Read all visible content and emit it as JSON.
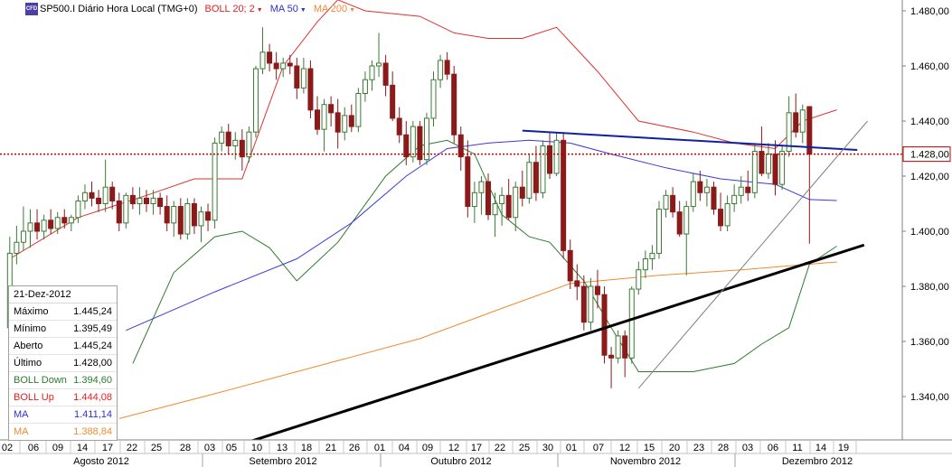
{
  "header": {
    "symbol_icon_text": "CFD",
    "title": "SP500.I Diário Hora Local (TMG+0)",
    "indicators": [
      {
        "label": "BOLL 20; 2",
        "color": "#e02020"
      },
      {
        "label": "MA 50",
        "color": "#3030d0"
      },
      {
        "label": "MA 200",
        "color": "#f08a30"
      }
    ]
  },
  "colors": {
    "up_candle": "#3a7a34",
    "down_candle": "#8b1a1a",
    "boll_upper": "#e03030",
    "boll_lower": "#2e7a2e",
    "ma50": "#3a3ad8",
    "ma200": "#f08a30",
    "current_price_line": "#c00000",
    "support_trendline": "#000000",
    "resistance_trendline": "#1020a0",
    "thin_trendline": "#808080",
    "price_label_border": "#c00000"
  },
  "price_axis": {
    "ticks": [
      "1.480,00",
      "1.460,00",
      "1.440,00",
      "1.420,00",
      "1.400,00",
      "1.380,00",
      "1.360,00",
      "1.340,00"
    ],
    "current_price_label": "1.428,00"
  },
  "time_axis": {
    "days": [
      "02",
      "06",
      "09",
      "14",
      "17",
      "22",
      "25",
      "28",
      "03",
      "05",
      "10",
      "13",
      "18",
      "21",
      "26",
      "01",
      "04",
      "09",
      "12",
      "17",
      "22",
      "25",
      "30",
      "01",
      "07",
      "12",
      "15",
      "20",
      "23",
      "28",
      "03",
      "06",
      "11",
      "14",
      "19"
    ],
    "months": [
      "Agosto 2012",
      "Setembro 2012",
      "Outubro 2012",
      "Novembro 2012",
      "Dezembro 2012"
    ]
  },
  "info_box": {
    "date": "21-Dez-2012",
    "rows": [
      {
        "label": "Máximo",
        "value": "1.445,24",
        "color": "#000000"
      },
      {
        "label": "Mínimo",
        "value": "1.395,49",
        "color": "#000000"
      },
      {
        "label": "Aberto",
        "value": "1.445,24",
        "color": "#000000"
      },
      {
        "label": "Último",
        "value": "1.428,00",
        "color": "#000000"
      },
      {
        "label": "BOLL Down",
        "value": "1.394,60",
        "color": "#2e7a2e"
      },
      {
        "label": "BOLL Up",
        "value": "1.444,08",
        "color": "#e02020"
      },
      {
        "label": "MA",
        "value": "1.411,14",
        "color": "#3030d0"
      },
      {
        "label": "MA",
        "value": "1.388,84",
        "color": "#f08a30"
      }
    ]
  },
  "chart_data": {
    "type": "candlestick",
    "symbol": "SP500.I",
    "y_range": [
      1322,
      1492
    ],
    "current_price": 1428.0,
    "candles": [
      {
        "o": 1365,
        "h": 1398,
        "l": 1355,
        "c": 1392
      },
      {
        "o": 1392,
        "h": 1402,
        "l": 1388,
        "c": 1396
      },
      {
        "o": 1396,
        "h": 1409,
        "l": 1393,
        "c": 1400
      },
      {
        "o": 1400,
        "h": 1408,
        "l": 1394,
        "c": 1403
      },
      {
        "o": 1403,
        "h": 1408,
        "l": 1397,
        "c": 1400
      },
      {
        "o": 1400,
        "h": 1406,
        "l": 1397,
        "c": 1404
      },
      {
        "o": 1404,
        "h": 1408,
        "l": 1399,
        "c": 1401
      },
      {
        "o": 1401,
        "h": 1407,
        "l": 1399,
        "c": 1405
      },
      {
        "o": 1405,
        "h": 1408,
        "l": 1401,
        "c": 1403
      },
      {
        "o": 1403,
        "h": 1406,
        "l": 1400,
        "c": 1405
      },
      {
        "o": 1405,
        "h": 1413,
        "l": 1403,
        "c": 1411
      },
      {
        "o": 1411,
        "h": 1417,
        "l": 1408,
        "c": 1414
      },
      {
        "o": 1414,
        "h": 1418,
        "l": 1409,
        "c": 1412
      },
      {
        "o": 1412,
        "h": 1415,
        "l": 1407,
        "c": 1410
      },
      {
        "o": 1410,
        "h": 1426,
        "l": 1407,
        "c": 1416
      },
      {
        "o": 1416,
        "h": 1418,
        "l": 1408,
        "c": 1411
      },
      {
        "o": 1411,
        "h": 1414,
        "l": 1400,
        "c": 1403
      },
      {
        "o": 1403,
        "h": 1414,
        "l": 1401,
        "c": 1413
      },
      {
        "o": 1413,
        "h": 1416,
        "l": 1408,
        "c": 1410
      },
      {
        "o": 1410,
        "h": 1416,
        "l": 1406,
        "c": 1412
      },
      {
        "o": 1412,
        "h": 1415,
        "l": 1407,
        "c": 1410
      },
      {
        "o": 1410,
        "h": 1415,
        "l": 1406,
        "c": 1412
      },
      {
        "o": 1412,
        "h": 1414,
        "l": 1406,
        "c": 1409
      },
      {
        "o": 1409,
        "h": 1413,
        "l": 1400,
        "c": 1403
      },
      {
        "o": 1403,
        "h": 1411,
        "l": 1398,
        "c": 1409
      },
      {
        "o": 1409,
        "h": 1412,
        "l": 1397,
        "c": 1399
      },
      {
        "o": 1399,
        "h": 1412,
        "l": 1397,
        "c": 1410
      },
      {
        "o": 1410,
        "h": 1412,
        "l": 1399,
        "c": 1402
      },
      {
        "o": 1402,
        "h": 1409,
        "l": 1396,
        "c": 1407
      },
      {
        "o": 1407,
        "h": 1410,
        "l": 1400,
        "c": 1404
      },
      {
        "o": 1404,
        "h": 1434,
        "l": 1401,
        "c": 1432
      },
      {
        "o": 1432,
        "h": 1438,
        "l": 1429,
        "c": 1436
      },
      {
        "o": 1436,
        "h": 1439,
        "l": 1428,
        "c": 1431
      },
      {
        "o": 1431,
        "h": 1436,
        "l": 1426,
        "c": 1433
      },
      {
        "o": 1433,
        "h": 1437,
        "l": 1422,
        "c": 1427
      },
      {
        "o": 1427,
        "h": 1438,
        "l": 1425,
        "c": 1436
      },
      {
        "o": 1436,
        "h": 1460,
        "l": 1434,
        "c": 1459
      },
      {
        "o": 1459,
        "h": 1474,
        "l": 1457,
        "c": 1465
      },
      {
        "o": 1465,
        "h": 1468,
        "l": 1458,
        "c": 1461
      },
      {
        "o": 1461,
        "h": 1465,
        "l": 1455,
        "c": 1459
      },
      {
        "o": 1459,
        "h": 1463,
        "l": 1456,
        "c": 1461
      },
      {
        "o": 1461,
        "h": 1464,
        "l": 1457,
        "c": 1460
      },
      {
        "o": 1460,
        "h": 1463,
        "l": 1448,
        "c": 1452
      },
      {
        "o": 1452,
        "h": 1463,
        "l": 1450,
        "c": 1459
      },
      {
        "o": 1459,
        "h": 1462,
        "l": 1441,
        "c": 1444
      },
      {
        "o": 1444,
        "h": 1449,
        "l": 1435,
        "c": 1437
      },
      {
        "o": 1437,
        "h": 1448,
        "l": 1429,
        "c": 1446
      },
      {
        "o": 1446,
        "h": 1449,
        "l": 1438,
        "c": 1443
      },
      {
        "o": 1443,
        "h": 1448,
        "l": 1430,
        "c": 1436
      },
      {
        "o": 1436,
        "h": 1445,
        "l": 1433,
        "c": 1442
      },
      {
        "o": 1442,
        "h": 1446,
        "l": 1436,
        "c": 1438
      },
      {
        "o": 1438,
        "h": 1452,
        "l": 1436,
        "c": 1450
      },
      {
        "o": 1450,
        "h": 1458,
        "l": 1447,
        "c": 1455
      },
      {
        "o": 1455,
        "h": 1462,
        "l": 1451,
        "c": 1460
      },
      {
        "o": 1460,
        "h": 1472,
        "l": 1456,
        "c": 1461
      },
      {
        "o": 1461,
        "h": 1464,
        "l": 1449,
        "c": 1453
      },
      {
        "o": 1453,
        "h": 1458,
        "l": 1440,
        "c": 1441
      },
      {
        "o": 1441,
        "h": 1445,
        "l": 1432,
        "c": 1435
      },
      {
        "o": 1435,
        "h": 1440,
        "l": 1424,
        "c": 1427
      },
      {
        "o": 1427,
        "h": 1440,
        "l": 1425,
        "c": 1438
      },
      {
        "o": 1438,
        "h": 1440,
        "l": 1424,
        "c": 1426
      },
      {
        "o": 1426,
        "h": 1443,
        "l": 1424,
        "c": 1441
      },
      {
        "o": 1441,
        "h": 1458,
        "l": 1438,
        "c": 1455
      },
      {
        "o": 1455,
        "h": 1464,
        "l": 1452,
        "c": 1462
      },
      {
        "o": 1462,
        "h": 1465,
        "l": 1455,
        "c": 1457
      },
      {
        "o": 1457,
        "h": 1460,
        "l": 1432,
        "c": 1435
      },
      {
        "o": 1435,
        "h": 1438,
        "l": 1422,
        "c": 1427
      },
      {
        "o": 1427,
        "h": 1433,
        "l": 1405,
        "c": 1409
      },
      {
        "o": 1409,
        "h": 1418,
        "l": 1403,
        "c": 1414
      },
      {
        "o": 1414,
        "h": 1420,
        "l": 1406,
        "c": 1418
      },
      {
        "o": 1418,
        "h": 1421,
        "l": 1404,
        "c": 1406
      },
      {
        "o": 1406,
        "h": 1414,
        "l": 1398,
        "c": 1410
      },
      {
        "o": 1410,
        "h": 1416,
        "l": 1402,
        "c": 1413
      },
      {
        "o": 1413,
        "h": 1419,
        "l": 1404,
        "c": 1405
      },
      {
        "o": 1405,
        "h": 1418,
        "l": 1400,
        "c": 1416
      },
      {
        "o": 1416,
        "h": 1422,
        "l": 1409,
        "c": 1412
      },
      {
        "o": 1412,
        "h": 1428,
        "l": 1410,
        "c": 1425
      },
      {
        "o": 1425,
        "h": 1431,
        "l": 1411,
        "c": 1414
      },
      {
        "o": 1414,
        "h": 1433,
        "l": 1412,
        "c": 1431
      },
      {
        "o": 1431,
        "h": 1436,
        "l": 1419,
        "c": 1421
      },
      {
        "o": 1421,
        "h": 1436,
        "l": 1420,
        "c": 1433
      },
      {
        "o": 1433,
        "h": 1436,
        "l": 1390,
        "c": 1393
      },
      {
        "o": 1393,
        "h": 1397,
        "l": 1379,
        "c": 1382
      },
      {
        "o": 1382,
        "h": 1388,
        "l": 1375,
        "c": 1380
      },
      {
        "o": 1380,
        "h": 1384,
        "l": 1364,
        "c": 1367
      },
      {
        "o": 1367,
        "h": 1383,
        "l": 1364,
        "c": 1380
      },
      {
        "o": 1380,
        "h": 1386,
        "l": 1372,
        "c": 1377
      },
      {
        "o": 1377,
        "h": 1380,
        "l": 1352,
        "c": 1355
      },
      {
        "o": 1355,
        "h": 1358,
        "l": 1343,
        "c": 1354
      },
      {
        "o": 1354,
        "h": 1364,
        "l": 1352,
        "c": 1362
      },
      {
        "o": 1362,
        "h": 1364,
        "l": 1347,
        "c": 1354
      },
      {
        "o": 1354,
        "h": 1380,
        "l": 1352,
        "c": 1379
      },
      {
        "o": 1379,
        "h": 1389,
        "l": 1377,
        "c": 1386
      },
      {
        "o": 1386,
        "h": 1393,
        "l": 1383,
        "c": 1390
      },
      {
        "o": 1390,
        "h": 1395,
        "l": 1386,
        "c": 1392
      },
      {
        "o": 1392,
        "h": 1411,
        "l": 1390,
        "c": 1408
      },
      {
        "o": 1408,
        "h": 1415,
        "l": 1405,
        "c": 1413
      },
      {
        "o": 1413,
        "h": 1416,
        "l": 1405,
        "c": 1407
      },
      {
        "o": 1407,
        "h": 1411,
        "l": 1398,
        "c": 1399
      },
      {
        "o": 1399,
        "h": 1411,
        "l": 1384,
        "c": 1409
      },
      {
        "o": 1409,
        "h": 1421,
        "l": 1407,
        "c": 1418
      },
      {
        "o": 1418,
        "h": 1422,
        "l": 1411,
        "c": 1414
      },
      {
        "o": 1414,
        "h": 1419,
        "l": 1409,
        "c": 1416
      },
      {
        "o": 1416,
        "h": 1418,
        "l": 1406,
        "c": 1408
      },
      {
        "o": 1408,
        "h": 1414,
        "l": 1400,
        "c": 1402
      },
      {
        "o": 1402,
        "h": 1413,
        "l": 1400,
        "c": 1410
      },
      {
        "o": 1410,
        "h": 1417,
        "l": 1407,
        "c": 1413
      },
      {
        "o": 1413,
        "h": 1420,
        "l": 1410,
        "c": 1416
      },
      {
        "o": 1416,
        "h": 1422,
        "l": 1411,
        "c": 1414
      },
      {
        "o": 1414,
        "h": 1432,
        "l": 1412,
        "c": 1429
      },
      {
        "o": 1429,
        "h": 1438,
        "l": 1420,
        "c": 1421
      },
      {
        "o": 1421,
        "h": 1432,
        "l": 1419,
        "c": 1428
      },
      {
        "o": 1428,
        "h": 1433,
        "l": 1413,
        "c": 1417
      },
      {
        "o": 1417,
        "h": 1431,
        "l": 1415,
        "c": 1429
      },
      {
        "o": 1429,
        "h": 1449,
        "l": 1427,
        "c": 1443
      },
      {
        "o": 1443,
        "h": 1450,
        "l": 1434,
        "c": 1436
      },
      {
        "o": 1436,
        "h": 1446,
        "l": 1432,
        "c": 1444
      },
      {
        "o": 1445.24,
        "h": 1445.24,
        "l": 1395.49,
        "c": 1428.0
      }
    ],
    "boll_upper": [
      [
        0,
        1390
      ],
      [
        10,
        1405
      ],
      [
        20,
        1413
      ],
      [
        27,
        1419
      ],
      [
        34,
        1419
      ],
      [
        40,
        1460
      ],
      [
        45,
        1476
      ],
      [
        48,
        1484
      ],
      [
        52,
        1480
      ],
      [
        60,
        1478
      ],
      [
        65,
        1472
      ],
      [
        70,
        1470
      ],
      [
        75,
        1470
      ],
      [
        80,
        1474
      ],
      [
        86,
        1458
      ],
      [
        92,
        1440
      ],
      [
        100,
        1436
      ],
      [
        106,
        1432
      ],
      [
        112,
        1430
      ],
      [
        116,
        1440
      ],
      [
        121,
        1444.08
      ]
    ],
    "boll_lower": [
      [
        18,
        1352
      ],
      [
        24,
        1385
      ],
      [
        30,
        1398
      ],
      [
        34,
        1400
      ],
      [
        38,
        1394
      ],
      [
        42,
        1382
      ],
      [
        48,
        1396
      ],
      [
        55,
        1420
      ],
      [
        60,
        1431
      ],
      [
        64,
        1433
      ],
      [
        68,
        1428
      ],
      [
        72,
        1406
      ],
      [
        76,
        1398
      ],
      [
        79,
        1396
      ],
      [
        84,
        1382
      ],
      [
        88,
        1365
      ],
      [
        92,
        1349
      ],
      [
        100,
        1349
      ],
      [
        106,
        1352
      ],
      [
        110,
        1359
      ],
      [
        114,
        1365
      ],
      [
        117,
        1388
      ],
      [
        121,
        1394.6
      ]
    ],
    "ma50": [
      [
        17,
        1364
      ],
      [
        30,
        1378
      ],
      [
        42,
        1390
      ],
      [
        50,
        1403
      ],
      [
        58,
        1420
      ],
      [
        64,
        1430
      ],
      [
        70,
        1432
      ],
      [
        76,
        1433
      ],
      [
        82,
        1432
      ],
      [
        88,
        1428
      ],
      [
        96,
        1423
      ],
      [
        104,
        1419
      ],
      [
        112,
        1417
      ],
      [
        117,
        1411.5
      ],
      [
        121,
        1411.14
      ]
    ],
    "ma200": [
      [
        16,
        1332
      ],
      [
        30,
        1341
      ],
      [
        45,
        1351
      ],
      [
        60,
        1361
      ],
      [
        72,
        1372
      ],
      [
        82,
        1381
      ],
      [
        95,
        1384
      ],
      [
        107,
        1386
      ],
      [
        121,
        1388.84
      ]
    ],
    "trendlines": [
      {
        "kind": "support",
        "from": {
          "x": 33,
          "y": 1322
        },
        "to": {
          "x": 125,
          "y": 1395
        }
      },
      {
        "kind": "resistance",
        "from": {
          "x": 75,
          "y": 1436.5
        },
        "to": {
          "x": 124,
          "y": 1429.5
        }
      },
      {
        "kind": "thin",
        "from": {
          "x": 92,
          "y": 1343
        },
        "to": {
          "x": 125.5,
          "y": 1440
        }
      }
    ]
  }
}
